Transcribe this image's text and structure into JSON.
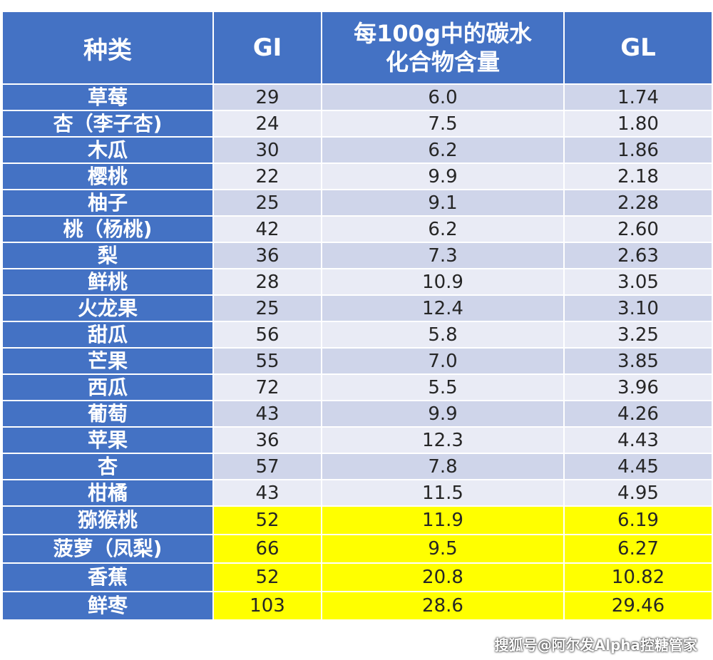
{
  "table": {
    "headers": [
      "种类",
      "GI",
      "每100g中的碳水\n化合物含量",
      "GL"
    ],
    "rows": [
      {
        "name": "草莓",
        "gi": "29",
        "carb": "6.0",
        "gl": "1.74"
      },
      {
        "name": "杏（李子杏)",
        "gi": "24",
        "carb": "7.5",
        "gl": "1.80"
      },
      {
        "name": "木瓜",
        "gi": "30",
        "carb": "6.2",
        "gl": "1.86"
      },
      {
        "name": "樱桃",
        "gi": "22",
        "carb": "9.9",
        "gl": "2.18"
      },
      {
        "name": "柚子",
        "gi": "25",
        "carb": "9.1",
        "gl": "2.28"
      },
      {
        "name": "桃（杨桃)",
        "gi": "42",
        "carb": "6.2",
        "gl": "2.60"
      },
      {
        "name": "梨",
        "gi": "36",
        "carb": "7.3",
        "gl": "2.63"
      },
      {
        "name": "鲜桃",
        "gi": "28",
        "carb": "10.9",
        "gl": "3.05"
      },
      {
        "name": "火龙果",
        "gi": "25",
        "carb": "12.4",
        "gl": "3.10"
      },
      {
        "name": "甜瓜",
        "gi": "56",
        "carb": "5.8",
        "gl": "3.25"
      },
      {
        "name": "芒果",
        "gi": "55",
        "carb": "7.0",
        "gl": "3.85"
      },
      {
        "name": "西瓜",
        "gi": "72",
        "carb": "5.5",
        "gl": "3.96"
      },
      {
        "name": "葡萄",
        "gi": "43",
        "carb": "9.9",
        "gl": "4.26"
      },
      {
        "name": "苹果",
        "gi": "36",
        "carb": "12.3",
        "gl": "4.43"
      },
      {
        "name": "杏",
        "gi": "57",
        "carb": "7.8",
        "gl": "4.45"
      },
      {
        "name": "柑橘",
        "gi": "43",
        "carb": "11.5",
        "gl": "4.95"
      },
      {
        "name": "猕猴桃",
        "gi": "52",
        "carb": "11.9",
        "gl": "6.19",
        "highlight": true
      },
      {
        "name": "菠萝（凤梨)",
        "gi": "66",
        "carb": "9.5",
        "gl": "6.27",
        "highlight": true
      },
      {
        "name": "香蕉",
        "gi": "52",
        "carb": "20.8",
        "gl": "10.82",
        "highlight": true
      },
      {
        "name": "鲜枣",
        "gi": "103",
        "carb": "28.6",
        "gl": "29.46",
        "highlight": true
      }
    ]
  },
  "colors": {
    "header": "#4472c4",
    "row_odd": "#cfd5ea",
    "row_even": "#e9ebf5",
    "highlight": "#ffff00"
  },
  "watermark": "搜狐号@阿尔发Alpha控糖管家"
}
